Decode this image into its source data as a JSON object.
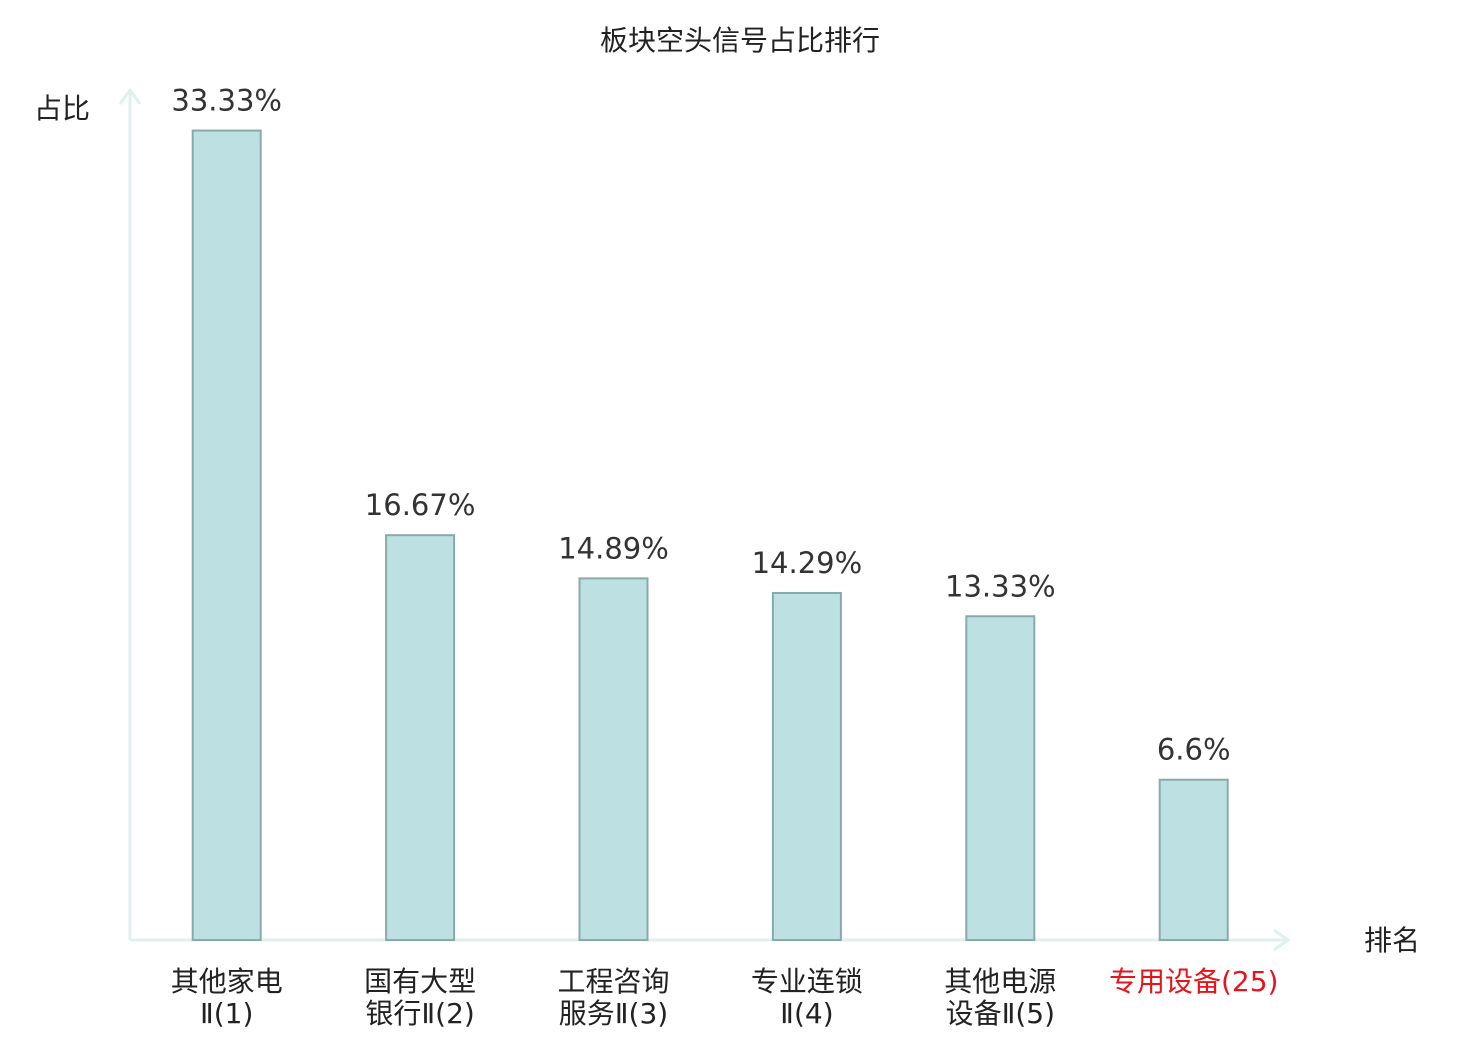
{
  "chart_data": {
    "type": "bar",
    "title": "板块空头信号占比排行",
    "y_label": "占比",
    "x_label": "排名",
    "categories": [
      [
        "其他家电",
        "Ⅱ(1)"
      ],
      [
        "国有大型",
        "银行Ⅱ(2)"
      ],
      [
        "工程咨询",
        "服务Ⅱ(3)"
      ],
      [
        "专业连锁",
        "Ⅱ(4)"
      ],
      [
        "其他电源",
        "设备Ⅱ(5)"
      ],
      [
        "专用设备(25)"
      ]
    ],
    "values": [
      33.33,
      16.67,
      14.89,
      14.29,
      13.33,
      6.6
    ],
    "value_labels": [
      "33.33%",
      "16.67%",
      "14.89%",
      "14.29%",
      "13.33%",
      "6.6%"
    ],
    "color": "#bde0e2",
    "edge_color": "#8aa9aa",
    "tick_label_colors": [
      "#222222",
      "#222222",
      "#222222",
      "#222222",
      "#222222",
      "#e8141b"
    ],
    "ylim": [
      0,
      35
    ]
  }
}
